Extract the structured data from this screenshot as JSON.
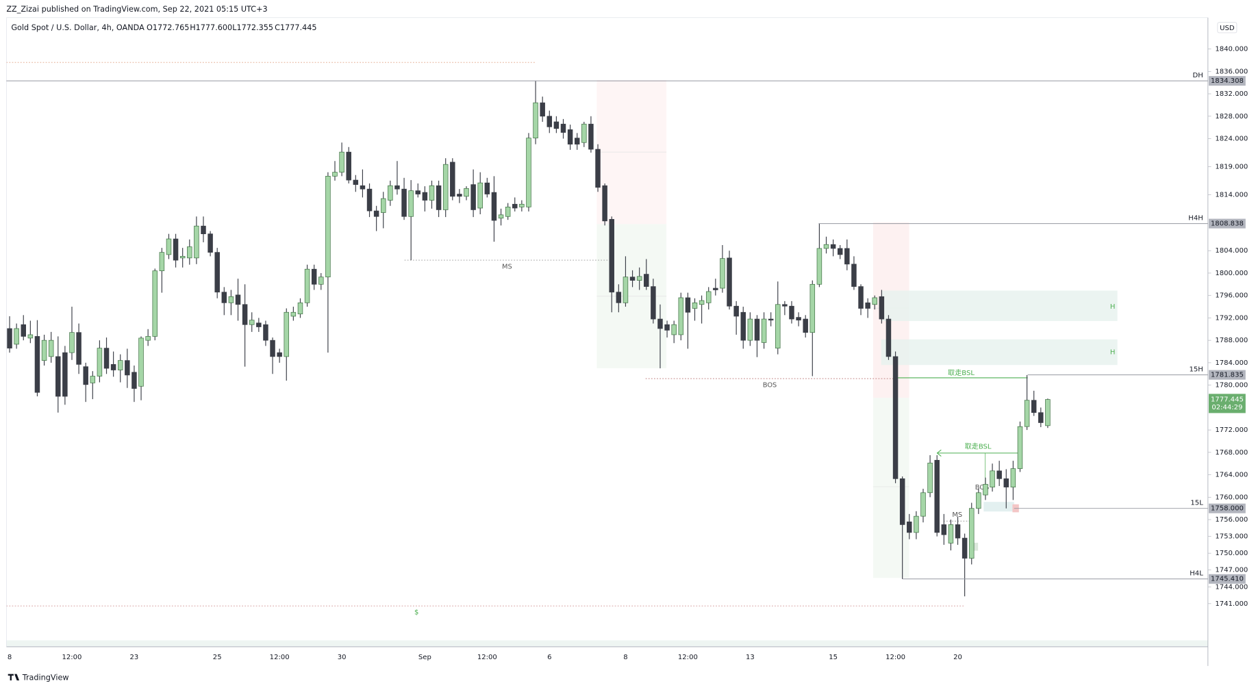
{
  "header": {
    "published": "ZZ_Zizai published on TradingView.com, Sep 22, 2021 05:15 UTC+3",
    "brand": "TradingView"
  },
  "chart_data": {
    "type": "candlestick",
    "symbol": "Gold Spot / U.S. Dollar, 4h, OANDA",
    "legend_values": [
      "O1772.765",
      "H1777.600",
      "L1772.355",
      "C1777.445"
    ],
    "currency": "USD",
    "up_color": "#a5d6a7",
    "down_color": "#3b3e47",
    "categories": [
      "8",
      null,
      null,
      null,
      null,
      null,
      null,
      null,
      null,
      "12:00",
      null,
      null,
      null,
      null,
      null,
      null,
      null,
      null,
      "23",
      null,
      null,
      null,
      null,
      null,
      null,
      null,
      null,
      null,
      null,
      null,
      "25",
      null,
      null,
      null,
      null,
      null,
      null,
      null,
      null,
      "12:00",
      null,
      null,
      null,
      null,
      null,
      null,
      null,
      null,
      "30",
      null,
      null,
      null,
      null,
      null,
      null,
      null,
      null,
      null,
      null,
      null,
      "Sep",
      null,
      null,
      null,
      null,
      null,
      null,
      null,
      null,
      "12:00",
      null,
      null,
      null,
      null,
      null,
      null,
      null,
      null,
      "6",
      null,
      null,
      null,
      null,
      null,
      null,
      null,
      null,
      null,
      null,
      "8",
      null,
      null,
      null,
      null,
      null,
      null,
      null,
      null,
      "12:00",
      null,
      null,
      null,
      null,
      null,
      null,
      null,
      null,
      "13",
      null,
      null,
      null,
      null,
      null,
      null,
      null,
      null,
      null,
      null,
      null,
      "15",
      null,
      null,
      null,
      null,
      null,
      null,
      null,
      null,
      "12:00",
      null,
      null,
      null,
      null,
      null,
      null,
      null,
      null,
      "20",
      null,
      null,
      null,
      null,
      null,
      null,
      null,
      null,
      null,
      null,
      null,
      null,
      null
    ],
    "open": [
      1790.1,
      1787.3,
      1790.8,
      1788.4,
      1788.7,
      1784.4,
      1785.1,
      1785.1,
      1785.8,
      1785.8,
      1789.4,
      1783.3,
      1780.4,
      1781.6,
      1786.6,
      1783.7,
      1782.7,
      1784.4,
      1782.3,
      1779.8,
      1788.0,
      1788.7,
      1800.4,
      1803.3,
      1806.1,
      1802.7,
      1802.7,
      1802.7,
      1808.4,
      1807.0,
      1803.7,
      1796.6,
      1794.7,
      1796.1,
      1794.4,
      1790.8,
      1791.1,
      1790.8,
      1788.0,
      1785.8,
      1785.1,
      1792.3,
      1792.7,
      1794.7,
      1800.7,
      1798.0,
      1799.3,
      1817.3,
      1818.0,
      1821.6,
      1816.6,
      1815.6,
      1815.0,
      1811.1,
      1810.8,
      1813.0,
      1815.6,
      1815.0,
      1810.1,
      1814.7,
      1814.4,
      1813.0,
      1815.6,
      1811.3,
      1819.8,
      1814.1,
      1813.7,
      1815.8,
      1811.6,
      1816.1,
      1814.4,
      1809.8,
      1810.1,
      1812.3,
      1811.8,
      1811.8,
      1824.1,
      1830.4,
      1828.0,
      1827.0,
      1826.6,
      1825.6,
      1824.1,
      1823.3,
      1826.6,
      1822.1,
      1815.6,
      1809.6,
      1796.6,
      1794.7,
      1799.3,
      1798.7,
      1799.8,
      1797.6,
      1791.8,
      1790.8,
      1789.0,
      1789.0,
      1795.6,
      1793.7,
      1794.4,
      1794.7,
      1797.3,
      1797.3,
      1802.7,
      1794.1,
      1793.0,
      1788.0,
      1791.8,
      1787.6,
      1791.8,
      1786.6,
      1794.4,
      1794.1,
      1792.1,
      1791.8,
      1789.4,
      1798.0,
      1804.4,
      1805.1,
      1804.4,
      1804.4,
      1801.6,
      1797.6,
      1794.7,
      1794.4,
      1795.8,
      1791.8,
      1785.1,
      1763.3,
      1755.6,
      1753.7,
      1756.6,
      1760.8,
      1766.6,
      1755.1,
      1751.8,
      1755.1,
      1752.7,
      1749.1,
      1758.0,
      1760.4,
      1761.8,
      1764.7,
      1763.3,
      1761.8,
      1765.1,
      1772.6,
      1777.3,
      1775.1,
      1772.765
    ],
    "high": [
      1792.3,
      1791.0,
      1792.5,
      1791.5,
      1791.6,
      1789.0,
      1789.5,
      1788.7,
      1787.0,
      1794.0,
      1791.0,
      1784.0,
      1782.5,
      1788.0,
      1788.5,
      1786.0,
      1785.5,
      1786.5,
      1783.5,
      1788.7,
      1790.0,
      1800.8,
      1804.5,
      1807.0,
      1807.0,
      1804.5,
      1806.0,
      1810.1,
      1810.1,
      1807.5,
      1804.5,
      1797.5,
      1797.0,
      1799.0,
      1798.0,
      1793.0,
      1792.0,
      1791.5,
      1788.5,
      1786.5,
      1793.7,
      1794.0,
      1795.5,
      1801.5,
      1801.5,
      1800.0,
      1818.0,
      1820.0,
      1823.3,
      1822.5,
      1817.5,
      1818.5,
      1816.0,
      1812.0,
      1814.5,
      1816.5,
      1820.0,
      1817.0,
      1816.6,
      1816.0,
      1815.5,
      1816.5,
      1816.5,
      1820.5,
      1820.5,
      1815.0,
      1815.5,
      1818.5,
      1818.0,
      1817.0,
      1817.3,
      1811.5,
      1812.5,
      1813.5,
      1813.0,
      1825.0,
      1834.3,
      1831.5,
      1829.0,
      1828.0,
      1827.5,
      1826.5,
      1825.0,
      1827.0,
      1828.0,
      1823.0,
      1816.0,
      1810.1,
      1798.0,
      1803.0,
      1800.5,
      1801.0,
      1802.5,
      1799.0,
      1794.4,
      1791.5,
      1791.5,
      1796.5,
      1796.5,
      1795.5,
      1796.0,
      1797.5,
      1799.0,
      1805.0,
      1804.0,
      1795.0,
      1794.0,
      1793.0,
      1792.5,
      1793.0,
      1793.0,
      1798.5,
      1795.0,
      1795.0,
      1793.0,
      1792.5,
      1798.7,
      1808.8,
      1806.5,
      1806.0,
      1805.0,
      1806.0,
      1803.0,
      1798.0,
      1795.5,
      1796.0,
      1797.0,
      1792.5,
      1786.0,
      1763.7,
      1757.0,
      1757.5,
      1761.5,
      1767.5,
      1767.5,
      1757.0,
      1756.0,
      1756.5,
      1753.5,
      1759.0,
      1761.5,
      1763.5,
      1766.0,
      1766.5,
      1765.0,
      1766.5,
      1773.5,
      1781.8,
      1779.0,
      1776.0,
      1777.6
    ],
    "low": [
      1785.8,
      1786.5,
      1788.0,
      1787.5,
      1778.0,
      1783.5,
      1784.0,
      1775.1,
      1776.5,
      1784.5,
      1782.0,
      1777.0,
      1777.5,
      1780.5,
      1782.0,
      1781.5,
      1780.5,
      1779.5,
      1777.0,
      1777.3,
      1787.0,
      1788.0,
      1796.5,
      1802.5,
      1801.0,
      1801.0,
      1801.5,
      1801.6,
      1805.5,
      1803.0,
      1795.5,
      1792.5,
      1792.5,
      1791.5,
      1783.3,
      1789.5,
      1789.5,
      1787.0,
      1782.0,
      1784.0,
      1780.8,
      1791.5,
      1792.0,
      1794.0,
      1797.0,
      1797.0,
      1785.8,
      1816.5,
      1817.3,
      1816.0,
      1814.5,
      1813.5,
      1810.0,
      1807.5,
      1808.0,
      1812.0,
      1814.0,
      1809.5,
      1802.3,
      1813.5,
      1811.0,
      1811.5,
      1810.0,
      1810.0,
      1813.0,
      1812.5,
      1813.0,
      1810.0,
      1810.5,
      1813.5,
      1805.6,
      1808.5,
      1809.5,
      1811.0,
      1811.0,
      1811.0,
      1823.0,
      1827.0,
      1825.0,
      1825.0,
      1824.0,
      1822.0,
      1822.0,
      1822.5,
      1821.5,
      1814.5,
      1808.5,
      1793.0,
      1793.0,
      1794.0,
      1797.5,
      1797.0,
      1797.0,
      1791.0,
      1783.0,
      1788.5,
      1787.5,
      1788.0,
      1786.5,
      1791.5,
      1791.0,
      1793.5,
      1796.0,
      1796.5,
      1793.5,
      1789.0,
      1786.5,
      1787.0,
      1785.0,
      1786.5,
      1790.5,
      1785.5,
      1792.5,
      1791.0,
      1790.5,
      1788.5,
      1781.6,
      1797.5,
      1803.5,
      1803.0,
      1802.5,
      1800.5,
      1797.0,
      1792.5,
      1792.0,
      1793.5,
      1791.0,
      1784.5,
      1762.5,
      1745.4,
      1752.5,
      1752.5,
      1755.5,
      1760.0,
      1753.0,
      1751.5,
      1750.5,
      1751.5,
      1742.3,
      1748.0,
      1757.0,
      1759.5,
      1761.0,
      1762.0,
      1758.0,
      1759.5,
      1764.5,
      1772.0,
      1774.5,
      1772.5,
      1772.355
    ],
    "close": [
      1786.6,
      1790.1,
      1788.7,
      1789.0,
      1778.7,
      1788.0,
      1788.0,
      1778.0,
      1778.0,
      1789.4,
      1783.7,
      1780.1,
      1781.6,
      1786.6,
      1783.0,
      1782.7,
      1784.4,
      1781.8,
      1779.4,
      1788.4,
      1788.7,
      1800.4,
      1803.7,
      1806.1,
      1802.3,
      1803.0,
      1804.7,
      1808.4,
      1807.0,
      1803.7,
      1796.6,
      1794.7,
      1795.8,
      1794.4,
      1790.8,
      1791.6,
      1790.4,
      1788.0,
      1785.1,
      1785.1,
      1793.0,
      1793.0,
      1794.7,
      1800.7,
      1798.0,
      1799.3,
      1817.3,
      1818.0,
      1821.6,
      1816.6,
      1815.8,
      1815.0,
      1811.1,
      1810.1,
      1813.3,
      1815.6,
      1815.0,
      1810.1,
      1814.7,
      1814.1,
      1813.0,
      1815.6,
      1811.3,
      1819.4,
      1813.7,
      1813.7,
      1815.1,
      1811.3,
      1816.1,
      1814.1,
      1809.4,
      1810.4,
      1811.8,
      1811.6,
      1812.3,
      1824.1,
      1830.4,
      1828.0,
      1826.1,
      1825.8,
      1825.1,
      1823.0,
      1823.0,
      1826.6,
      1822.1,
      1815.3,
      1809.3,
      1796.6,
      1794.7,
      1799.3,
      1798.7,
      1799.4,
      1797.6,
      1791.8,
      1790.1,
      1789.8,
      1790.8,
      1795.6,
      1793.0,
      1794.7,
      1795.1,
      1796.7,
      1797.0,
      1802.6,
      1794.1,
      1792.3,
      1788.0,
      1791.8,
      1788.0,
      1791.8,
      1791.6,
      1794.4,
      1794.1,
      1791.8,
      1791.6,
      1789.4,
      1798.0,
      1804.4,
      1805.1,
      1804.4,
      1803.3,
      1801.6,
      1797.6,
      1793.7,
      1793.7,
      1795.6,
      1791.8,
      1785.1,
      1763.3,
      1755.1,
      1753.7,
      1756.6,
      1760.8,
      1766.1,
      1753.7,
      1753.3,
      1755.1,
      1752.7,
      1749.1,
      1758.0,
      1760.8,
      1762.3,
      1764.7,
      1763.3,
      1761.8,
      1765.1,
      1772.6,
      1777.3,
      1775.1,
      1773.3,
      1777.445
    ],
    "ylim": [
      1733.3,
      1845.6
    ],
    "yticks": [
      {
        "value": 1840,
        "label": "1840.000"
      },
      {
        "value": 1836,
        "label": "1836.000"
      },
      {
        "value": 1832,
        "label": "1832.000"
      },
      {
        "value": 1828,
        "label": "1828.000"
      },
      {
        "value": 1824,
        "label": "1824.000"
      },
      {
        "value": 1819,
        "label": "1819.000"
      },
      {
        "value": 1814,
        "label": "1814.000"
      },
      {
        "value": 1804,
        "label": "1804.000"
      },
      {
        "value": 1800,
        "label": "1800.000"
      },
      {
        "value": 1796,
        "label": "1796.000"
      },
      {
        "value": 1792,
        "label": "1792.000"
      },
      {
        "value": 1788,
        "label": "1788.000"
      },
      {
        "value": 1784,
        "label": "1784.000"
      },
      {
        "value": 1780,
        "label": "1780.000"
      },
      {
        "value": 1772,
        "label": "1772.000"
      },
      {
        "value": 1768,
        "label": "1768.000"
      },
      {
        "value": 1764,
        "label": "1764.000"
      },
      {
        "value": 1760,
        "label": "1760.000"
      },
      {
        "value": 1756,
        "label": "1756.000"
      },
      {
        "value": 1753,
        "label": "1753.000"
      },
      {
        "value": 1750,
        "label": "1750.000"
      },
      {
        "value": 1747,
        "label": "1747.000"
      },
      {
        "value": 1744,
        "label": "1744.000"
      },
      {
        "value": 1741,
        "label": "1741.000"
      }
    ],
    "price_levels": [
      {
        "name": "DH",
        "price": 1834.308
      },
      {
        "name": "H4H",
        "price": 1808.838
      },
      {
        "name": "15H",
        "price": 1781.835
      },
      {
        "name": "15L",
        "price": {
          "value": 1758,
          "label": "1758.000"
        }
      },
      {
        "name": "H4L",
        "price": {
          "value": 1745.41,
          "label": "1745.410"
        }
      }
    ],
    "last_price": {
      "price": 1777.445,
      "countdown": "02:44:29"
    },
    "annotations": [
      "MS",
      "BOS",
      "取走BSL",
      "取走BSL",
      "MS",
      "BOS",
      "H",
      "H",
      "$"
    ],
    "grid": false
  }
}
